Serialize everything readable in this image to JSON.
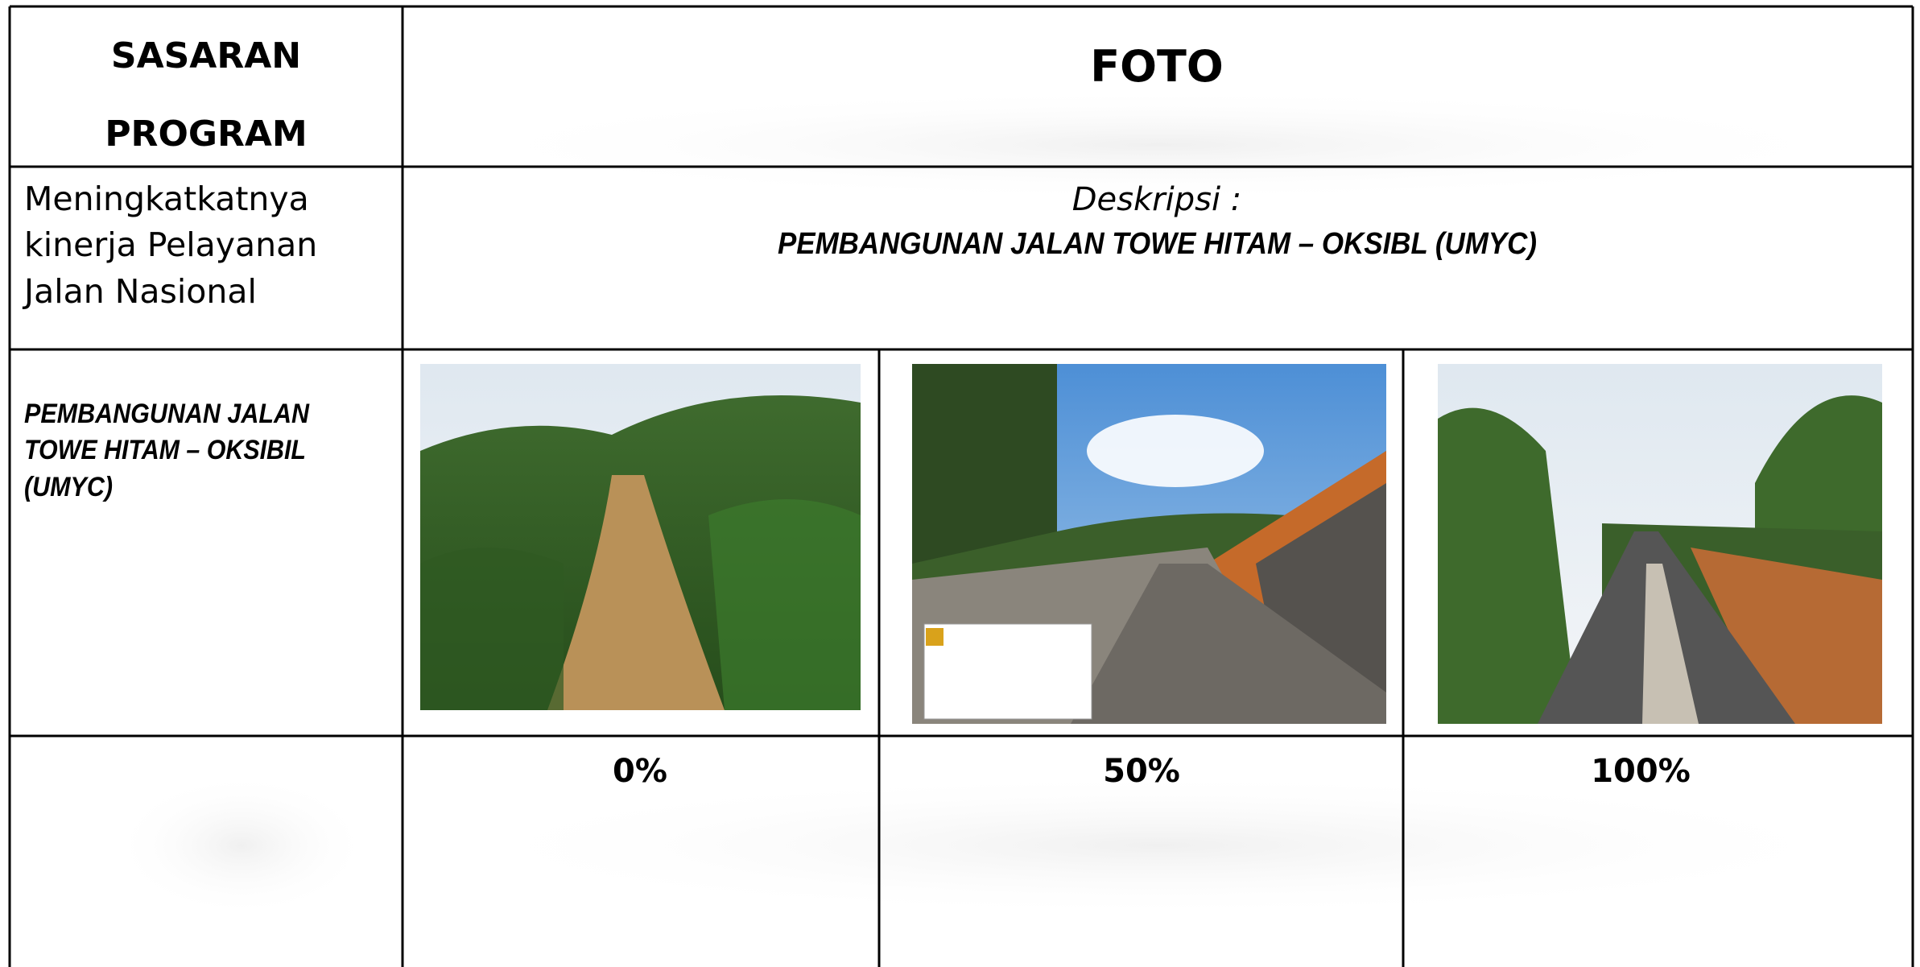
{
  "header": {
    "sasaran_program": [
      "SASARAN",
      "PROGRAM"
    ],
    "foto": "FOTO"
  },
  "rows": [
    {
      "sasaran": [
        "Meningkatkatnya",
        "kinerja Pelayanan",
        "Jalan Nasional"
      ],
      "deskripsi_label": "Deskripsi :",
      "deskripsi": "PEMBANGUNAN JALAN TOWE HITAM – OKSIBL (UMYC)"
    },
    {
      "sasaran": [
        "PEMBANGUNAN JALAN",
        "TOWE HITAM – OKSIBIL",
        "(UMYC)"
      ]
    }
  ],
  "progress": [
    "0%",
    "50%",
    "100%"
  ]
}
